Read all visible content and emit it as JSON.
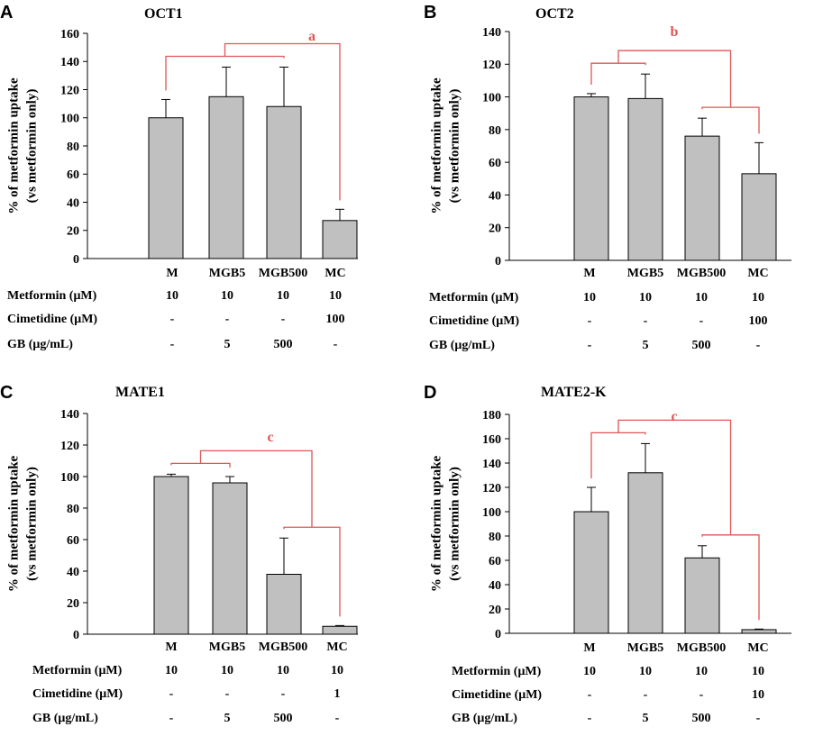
{
  "colors": {
    "bar_fill": "#c0c0c0",
    "bar_stroke": "#000000",
    "axis": "#000000",
    "bracket": "#e05555"
  },
  "row_labels": [
    "Metformin (μM)",
    "Cimetidine (μM)",
    "GB (μg/mL)"
  ],
  "chart_data": [
    {
      "panel_label": "A",
      "type": "bar",
      "title": "OCT1",
      "ylabel": "% of metformin uptake",
      "ylabel2": "(vs metformin only)",
      "ylim": [
        0,
        160
      ],
      "yticks": [
        0,
        20,
        40,
        60,
        80,
        100,
        120,
        140,
        160
      ],
      "categories": [
        "M",
        "MGB5",
        "MGB500",
        "MC"
      ],
      "values": [
        100,
        115,
        108,
        27
      ],
      "errors": [
        13,
        21,
        28,
        8
      ],
      "table": [
        [
          "10",
          "10",
          "10",
          "10"
        ],
        [
          "-",
          "-",
          "-",
          "100"
        ],
        [
          "-",
          "5",
          "500",
          "-"
        ]
      ],
      "significance": "a"
    },
    {
      "panel_label": "B",
      "type": "bar",
      "title": "OCT2",
      "ylabel": "% of metformin uptake",
      "ylabel2": "(vs metformin only)",
      "ylim": [
        0,
        140
      ],
      "yticks": [
        0,
        20,
        40,
        60,
        80,
        100,
        120,
        140
      ],
      "categories": [
        "M",
        "MGB5",
        "MGB500",
        "MC"
      ],
      "values": [
        100,
        99,
        76,
        53
      ],
      "errors": [
        2,
        15,
        11,
        19
      ],
      "table": [
        [
          "10",
          "10",
          "10",
          "10"
        ],
        [
          "-",
          "-",
          "-",
          "100"
        ],
        [
          "-",
          "5",
          "500",
          "-"
        ]
      ],
      "significance": "b"
    },
    {
      "panel_label": "C",
      "type": "bar",
      "title": "MATE1",
      "ylabel": "% of metformin uptake",
      "ylabel2": "(vs metformin only)",
      "ylim": [
        0,
        140
      ],
      "yticks": [
        0,
        20,
        40,
        60,
        80,
        100,
        120,
        140
      ],
      "categories": [
        "M",
        "MGB5",
        "MGB500",
        "MC"
      ],
      "values": [
        100,
        96,
        38,
        5
      ],
      "errors": [
        1.5,
        4,
        23,
        0.5
      ],
      "table": [
        [
          "10",
          "10",
          "10",
          "10"
        ],
        [
          "-",
          "-",
          "-",
          "1"
        ],
        [
          "-",
          "5",
          "500",
          "-"
        ]
      ],
      "significance": "c"
    },
    {
      "panel_label": "D",
      "type": "bar",
      "title": "MATE2-K",
      "ylabel": "% of metformin uptake",
      "ylabel2": "(vs metformin only)",
      "ylim": [
        0,
        180
      ],
      "yticks": [
        0,
        20,
        40,
        60,
        80,
        100,
        120,
        140,
        160,
        180
      ],
      "categories": [
        "M",
        "MGB5",
        "MGB500",
        "MC"
      ],
      "values": [
        100,
        132,
        62,
        3
      ],
      "errors": [
        20,
        24,
        10,
        0.5
      ],
      "table": [
        [
          "10",
          "10",
          "10",
          "10"
        ],
        [
          "-",
          "-",
          "-",
          "10"
        ],
        [
          "-",
          "5",
          "500",
          "-"
        ]
      ],
      "significance": "c"
    }
  ]
}
